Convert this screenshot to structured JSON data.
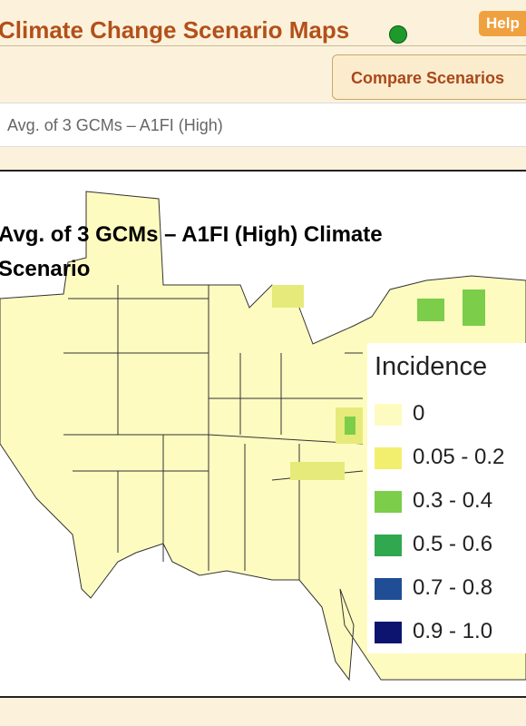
{
  "header": {
    "title": "Climate Change Scenario Maps",
    "help": "Help"
  },
  "compare_button": "Compare Scenarios",
  "scenario_select": "Avg. of 3 GCMs – A1FI (High)",
  "map": {
    "title": "Avg. of 3 GCMs – A1FI (High) Climate Scenario",
    "legend": {
      "title": "Incidence",
      "items": [
        {
          "label": "0"
        },
        {
          "label": "0.05 - 0.2"
        },
        {
          "label": "0.3 - 0.4"
        },
        {
          "label": "0.5 - 0.6"
        },
        {
          "label": "0.7 - 0.8"
        },
        {
          "label": "0.9 - 1.0"
        }
      ]
    }
  }
}
